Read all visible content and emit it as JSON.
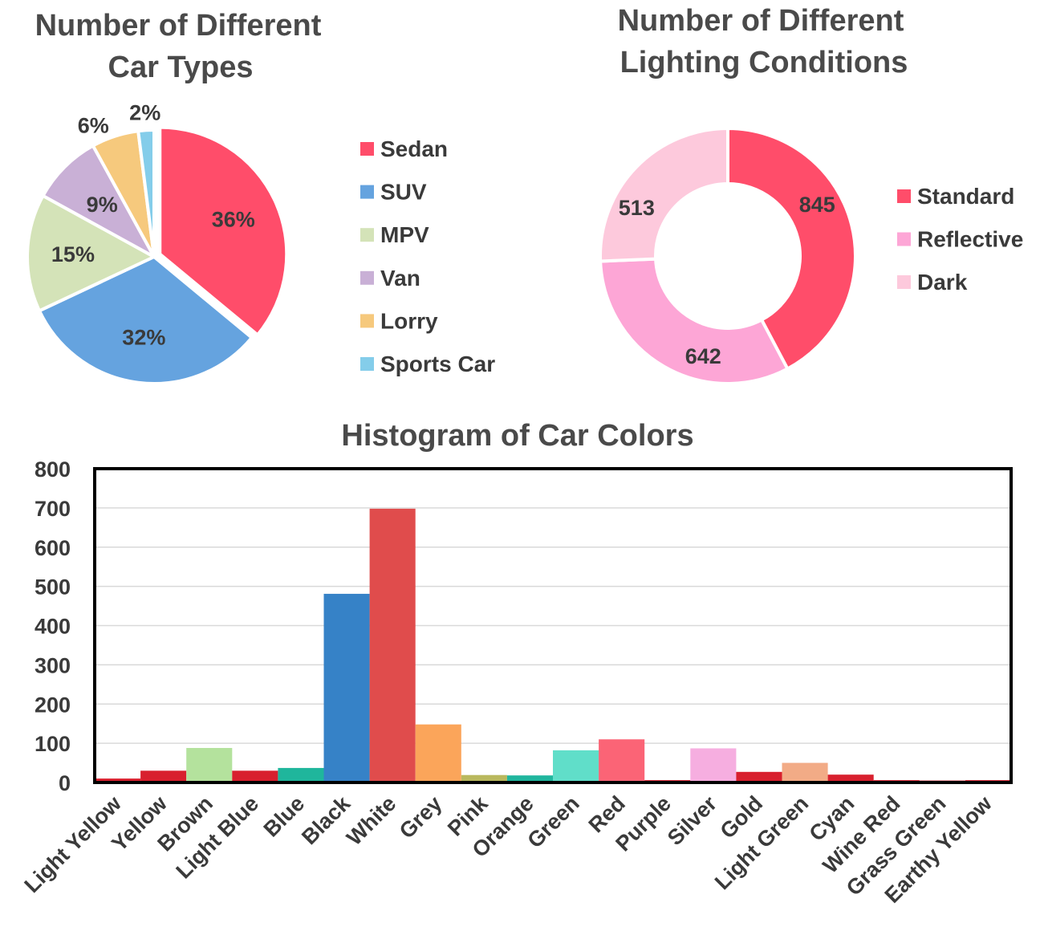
{
  "chart_data": [
    {
      "type": "pie",
      "title_lines": [
        "Number of Different",
        "Car Types"
      ],
      "unit": "%",
      "slices": [
        {
          "label": "Sedan",
          "value": 36,
          "color": "#ff4d6a"
        },
        {
          "label": "SUV",
          "value": 32,
          "color": "#65a3df"
        },
        {
          "label": "MPV",
          "value": 15,
          "color": "#d4e3b8"
        },
        {
          "label": "Van",
          "value": 9,
          "color": "#c9b0d6"
        },
        {
          "label": "Lorry",
          "value": 6,
          "color": "#f6c97d"
        },
        {
          "label": "Sports Car",
          "value": 2,
          "color": "#84cdea"
        }
      ],
      "exploded": [
        "Sedan"
      ],
      "legend_position": "right"
    },
    {
      "type": "donut",
      "title_lines": [
        "Number of Different",
        "Lighting Conditions"
      ],
      "slices": [
        {
          "label": "Standard",
          "value": 845,
          "color": "#ff4d6a"
        },
        {
          "label": "Reflective",
          "value": 642,
          "color": "#fda6d6"
        },
        {
          "label": "Dark",
          "value": 513,
          "color": "#fdc9dc"
        }
      ],
      "legend_position": "right"
    },
    {
      "type": "bar",
      "title": "Histogram of Car Colors",
      "ylim": [
        0,
        800
      ],
      "yticks": [
        0,
        100,
        200,
        300,
        400,
        500,
        600,
        700,
        800
      ],
      "grid": true,
      "categories": [
        "Light Yellow",
        "Yellow",
        "Brown",
        "Light Blue",
        "Blue",
        "Black",
        "White",
        "Grey",
        "Pink",
        "Orange",
        "Green",
        "Red",
        "Purple",
        "Silver",
        "Gold",
        "Light Green",
        "Cyan",
        "Wine Red",
        "Grass Green",
        "Earthy Yellow"
      ],
      "values": [
        10,
        30,
        88,
        30,
        37,
        481,
        698,
        148,
        19,
        18,
        82,
        110,
        6,
        87,
        27,
        50,
        20,
        6,
        5,
        6
      ],
      "colors": [
        "#d8202e",
        "#d8202e",
        "#b4e29d",
        "#d8202e",
        "#1fb69c",
        "#3682c7",
        "#e04c4c",
        "#fba55a",
        "#b9b85e",
        "#20b69e",
        "#60dec9",
        "#fb6476",
        "#d8202e",
        "#f6aee0",
        "#d8202e",
        "#f2ab86",
        "#d8202e",
        "#d8202e",
        "#d8202e",
        "#d8202e"
      ]
    }
  ]
}
